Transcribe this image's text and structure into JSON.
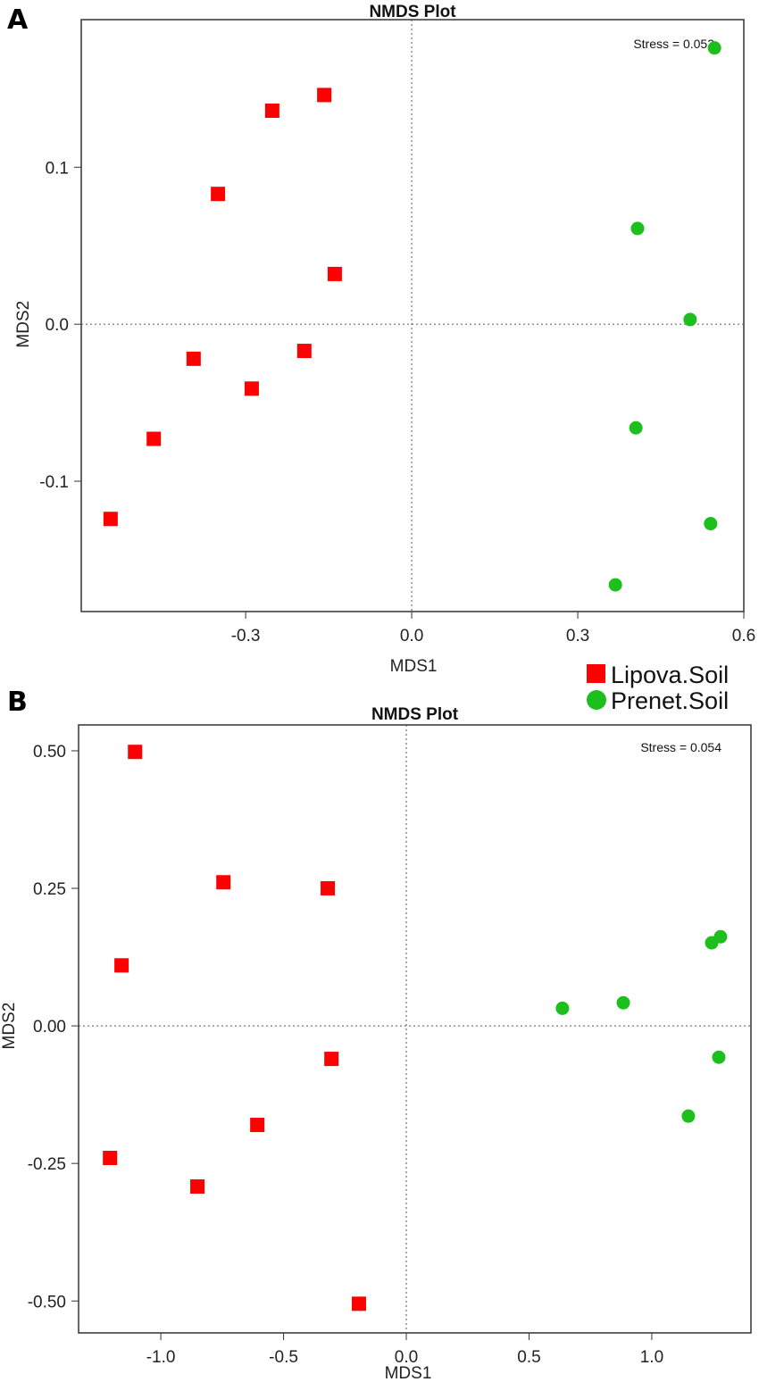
{
  "legend": {
    "entries": [
      {
        "label": "Lipova.Soil",
        "color": "#ff0000",
        "shape": "square"
      },
      {
        "label": "Prenet.Soil",
        "color": "#1dbf1d",
        "shape": "circle"
      }
    ]
  },
  "chart_data": [
    {
      "type": "scatter",
      "panel_label": "A",
      "title": "NMDS Plot",
      "xlabel": "MDS1",
      "ylabel": "MDS2",
      "annotation": "Stress = 0.053",
      "xlim": [
        -0.597,
        0.6
      ],
      "ylim": [
        -0.183,
        0.194
      ],
      "xticks": [
        -0.3,
        0.0,
        0.3,
        0.6
      ],
      "xtick_labels": [
        "-0.3",
        "0.0",
        "0.3",
        "0.6"
      ],
      "yticks": [
        -0.1,
        0.0,
        0.1
      ],
      "ytick_labels": [
        "-0.1",
        "0.0",
        "0.1"
      ],
      "reference_lines": {
        "x": 0,
        "y": 0
      },
      "series": [
        {
          "name": "Lipova.Soil",
          "points": [
            [
              -0.158,
              0.146
            ],
            [
              -0.252,
              0.136
            ],
            [
              -0.35,
              0.083
            ],
            [
              -0.139,
              0.032
            ],
            [
              -0.394,
              -0.022
            ],
            [
              -0.194,
              -0.017
            ],
            [
              -0.289,
              -0.041
            ],
            [
              -0.466,
              -0.073
            ],
            [
              -0.544,
              -0.124
            ]
          ]
        },
        {
          "name": "Prenet.Soil",
          "points": [
            [
              0.547,
              0.176
            ],
            [
              0.408,
              0.061
            ],
            [
              0.503,
              0.003
            ],
            [
              0.405,
              -0.066
            ],
            [
              0.54,
              -0.127
            ],
            [
              0.368,
              -0.166
            ]
          ]
        }
      ]
    },
    {
      "type": "scatter",
      "panel_label": "B",
      "title": "NMDS Plot",
      "xlabel": "MDS1",
      "ylabel": "MDS2",
      "annotation": "Stress = 0.054",
      "xlim": [
        -1.335,
        1.404
      ],
      "ylim": [
        -0.558,
        0.547
      ],
      "xticks": [
        -1.0,
        -0.5,
        0.0,
        0.5,
        1.0
      ],
      "xtick_labels": [
        "-1.0",
        "-0.5",
        "0.0",
        "0.5",
        "1.0"
      ],
      "yticks": [
        -0.5,
        -0.25,
        0.0,
        0.25,
        0.5
      ],
      "ytick_labels": [
        "-0.50",
        "-0.25",
        "0.00",
        "0.25",
        "0.50"
      ],
      "reference_lines": {
        "x": 0,
        "y": 0
      },
      "series": [
        {
          "name": "Lipova.Soil",
          "points": [
            [
              -1.105,
              0.498
            ],
            [
              -0.745,
              0.261
            ],
            [
              -0.32,
              0.25
            ],
            [
              -1.16,
              0.11
            ],
            [
              -0.305,
              -0.06
            ],
            [
              -0.607,
              -0.18
            ],
            [
              -1.207,
              -0.24
            ],
            [
              -0.851,
              -0.292
            ],
            [
              -0.193,
              -0.505
            ]
          ]
        },
        {
          "name": "Prenet.Soil",
          "points": [
            [
              0.636,
              0.032
            ],
            [
              0.884,
              0.042
            ],
            [
              1.244,
              0.151
            ],
            [
              1.28,
              0.162
            ],
            [
              1.273,
              -0.057
            ],
            [
              1.149,
              -0.164
            ]
          ]
        }
      ]
    }
  ]
}
